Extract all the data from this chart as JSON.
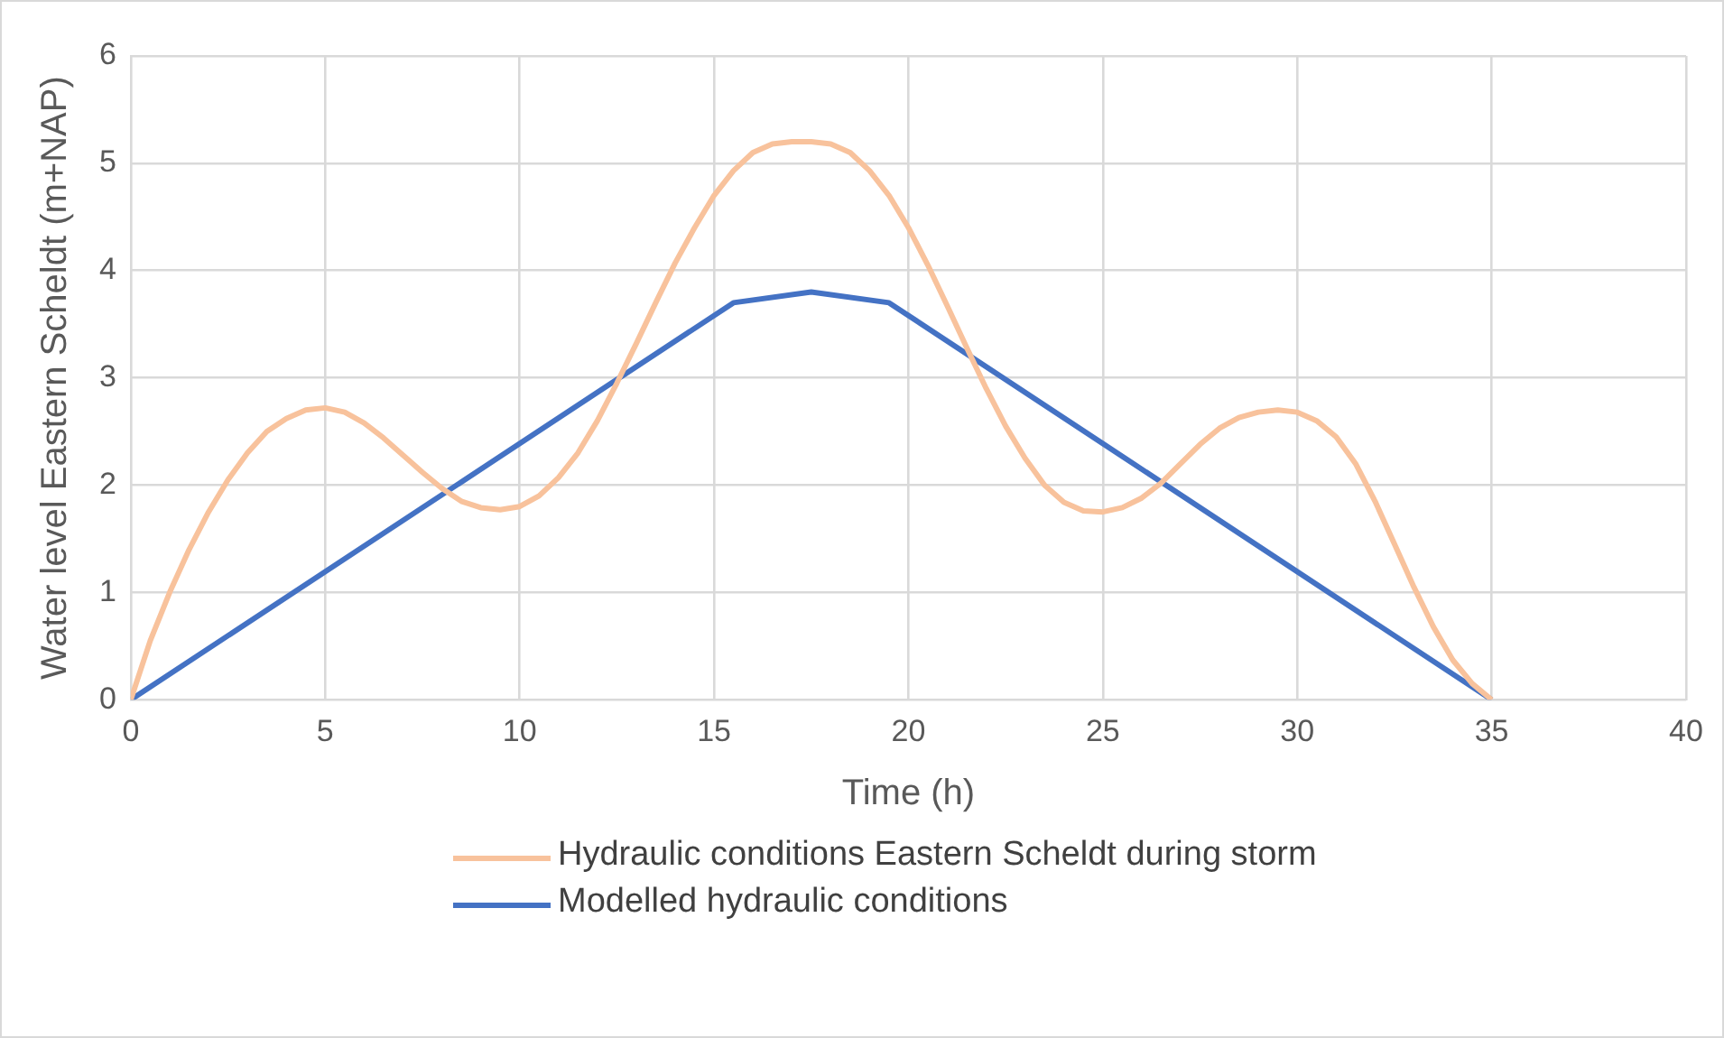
{
  "chart_data": {
    "type": "line",
    "xlabel": "Time (h)",
    "ylabel": "Water level Eastern Scheldt (m+NAP)",
    "xlim": [
      0,
      40
    ],
    "xticks": [
      0,
      5,
      10,
      15,
      20,
      25,
      30,
      35,
      40
    ],
    "ylim": [
      0,
      6
    ],
    "yticks": [
      0,
      1,
      2,
      3,
      4,
      5,
      6
    ],
    "grid": true,
    "legend": "bottom",
    "marker": "none",
    "line_style": "solid",
    "series": [
      {
        "name": "Hydraulic conditions Eastern Scheldt during storm",
        "color": "#f8c29c",
        "x": [
          0,
          0.5,
          1,
          1.5,
          2,
          2.5,
          3,
          3.5,
          4,
          4.5,
          5,
          5.5,
          6,
          6.5,
          7,
          7.5,
          8,
          8.5,
          9,
          9.5,
          10,
          10.5,
          11,
          11.5,
          12,
          12.5,
          13,
          13.5,
          14,
          14.5,
          15,
          15.5,
          16,
          16.5,
          17,
          17.5,
          18,
          18.5,
          19,
          19.5,
          20,
          20.5,
          21,
          21.5,
          22,
          22.5,
          23,
          23.5,
          24,
          24.5,
          25,
          25.5,
          26,
          26.5,
          27,
          27.5,
          28,
          28.5,
          29,
          29.5,
          30,
          30.5,
          31,
          31.5,
          32,
          32.5,
          33,
          33.5,
          34,
          34.5,
          35
        ],
        "values": [
          0,
          0.55,
          1.0,
          1.4,
          1.75,
          2.05,
          2.3,
          2.5,
          2.62,
          2.7,
          2.72,
          2.68,
          2.58,
          2.44,
          2.28,
          2.12,
          1.97,
          1.85,
          1.79,
          1.77,
          1.8,
          1.9,
          2.07,
          2.3,
          2.6,
          2.95,
          3.32,
          3.7,
          4.07,
          4.4,
          4.7,
          4.93,
          5.1,
          5.18,
          5.2,
          5.2,
          5.18,
          5.1,
          4.93,
          4.7,
          4.4,
          4.05,
          3.67,
          3.28,
          2.9,
          2.55,
          2.25,
          2.0,
          1.84,
          1.76,
          1.75,
          1.79,
          1.88,
          2.02,
          2.2,
          2.38,
          2.53,
          2.63,
          2.68,
          2.7,
          2.68,
          2.6,
          2.45,
          2.2,
          1.85,
          1.45,
          1.05,
          0.68,
          0.37,
          0.15,
          0
        ]
      },
      {
        "name": "Modelled hydraulic conditions",
        "color": "#4472c4",
        "x": [
          0,
          15.5,
          17.5,
          19.5,
          35
        ],
        "values": [
          0,
          3.7,
          3.8,
          3.7,
          0
        ]
      }
    ]
  }
}
